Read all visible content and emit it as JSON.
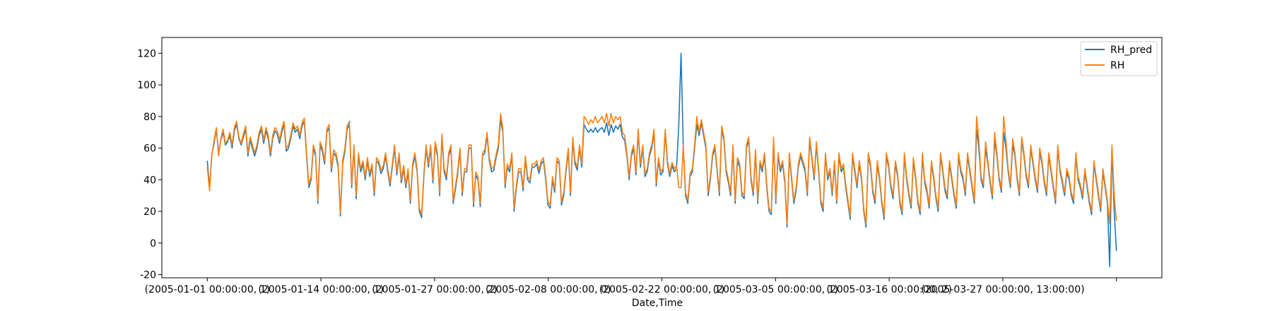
{
  "chart_data": {
    "type": "line",
    "title": "",
    "xlabel": "Date,Time",
    "ylabel": "",
    "ylim": [
      -22,
      130
    ],
    "xlim": [
      -20,
      420
    ],
    "yticks": [
      -20,
      0,
      20,
      40,
      60,
      80,
      100,
      120
    ],
    "xticks": [
      {
        "pos": 0,
        "label": "(2005-01-01 00:00:00, 1)"
      },
      {
        "pos": 50,
        "label": "(2005-01-14 00:00:00, 1)"
      },
      {
        "pos": 100,
        "label": "(2005-01-27 00:00:00, 2)"
      },
      {
        "pos": 150,
        "label": "(2005-02-08 00:00:00, 0)"
      },
      {
        "pos": 200,
        "label": "(2005-02-22 00:00:00, 1)"
      },
      {
        "pos": 250,
        "label": "(2005-03-05 00:00:00, 1)"
      },
      {
        "pos": 300,
        "label": "(2005-03-16 00:00:00, 2)"
      },
      {
        "pos": 350,
        "label": "(2005-03-27 00:00:00, 13:00:00)"
      },
      {
        "pos": 400,
        "label": ""
      }
    ],
    "legend_position": "upper right",
    "series": [
      {
        "name": "RH_pred",
        "color": "#1f77b4",
        "values": [
          52,
          35,
          56,
          63,
          72,
          57,
          65,
          70,
          62,
          64,
          68,
          60,
          71,
          75,
          66,
          62,
          67,
          72,
          55,
          65,
          60,
          55,
          60,
          68,
          72,
          63,
          71,
          66,
          55,
          66,
          71,
          69,
          63,
          70,
          75,
          58,
          60,
          66,
          74,
          70,
          72,
          66,
          74,
          77,
          55,
          35,
          40,
          60,
          55,
          25,
          62,
          58,
          50,
          70,
          73,
          45,
          57,
          55,
          48,
          17,
          50,
          58,
          72,
          75,
          35,
          60,
          28,
          55,
          45,
          50,
          40,
          52,
          42,
          48,
          30,
          52,
          50,
          44,
          47,
          55,
          45,
          36,
          48,
          60,
          43,
          55,
          38,
          47,
          35,
          45,
          25,
          48,
          55,
          45,
          20,
          16,
          42,
          60,
          48,
          60,
          38,
          62,
          55,
          30,
          67,
          45,
          40,
          55,
          60,
          25,
          34,
          44,
          58,
          30,
          45,
          45,
          60,
          60,
          23,
          43,
          40,
          23,
          55,
          57,
          68,
          52,
          45,
          46,
          54,
          60,
          78,
          70,
          35,
          48,
          45,
          55,
          20,
          35,
          45,
          45,
          33,
          53,
          40,
          38,
          48,
          48,
          50,
          44,
          50,
          52,
          40,
          24,
          22,
          40,
          32,
          52,
          50,
          24,
          30,
          45,
          58,
          30,
          65,
          50,
          46,
          60,
          48,
          75,
          72,
          70,
          72,
          70,
          73,
          70,
          72,
          73,
          70,
          76,
          68,
          75,
          70,
          74,
          72,
          75,
          67,
          65,
          55,
          40,
          55,
          60,
          43,
          70,
          48,
          60,
          42,
          45,
          55,
          60,
          70,
          36,
          52,
          43,
          45,
          70,
          50,
          42,
          49,
          45,
          47,
          75,
          120,
          60,
          30,
          25,
          42,
          45,
          60,
          75,
          68,
          76,
          68,
          60,
          30,
          40,
          55,
          60,
          45,
          30,
          72,
          65,
          45,
          38,
          30,
          60,
          25,
          52,
          48,
          30,
          28,
          60,
          65,
          40,
          30,
          57,
          25,
          50,
          45,
          55,
          35,
          20,
          18,
          65,
          25,
          55,
          45,
          50,
          38,
          10,
          55,
          40,
          25,
          33,
          48,
          55,
          50,
          45,
          30,
          65,
          53,
          40,
          62,
          45,
          25,
          20,
          55,
          40,
          45,
          30,
          50,
          25,
          55,
          45,
          48,
          35,
          25,
          15,
          55,
          45,
          35,
          50,
          40,
          20,
          10,
          55,
          48,
          32,
          25,
          50,
          40,
          25,
          15,
          55,
          48,
          35,
          28,
          50,
          42,
          25,
          18,
          55,
          40,
          30,
          22,
          52,
          40,
          25,
          18,
          55,
          38,
          32,
          22,
          50,
          40,
          28,
          20,
          55,
          45,
          33,
          28,
          50,
          40,
          30,
          22,
          55,
          45,
          40,
          30,
          55,
          45,
          35,
          25,
          72,
          60,
          40,
          35,
          60,
          50,
          38,
          28,
          65,
          55,
          40,
          32,
          70,
          60,
          45,
          35,
          62,
          55,
          40,
          30,
          65,
          55,
          42,
          35,
          60,
          50,
          40,
          32,
          58,
          50,
          38,
          30,
          55,
          45,
          35,
          25,
          60,
          45,
          38,
          30,
          45,
          40,
          30,
          25,
          55,
          40,
          35,
          28,
          45,
          35,
          25,
          18,
          50,
          40,
          30,
          20,
          45,
          35,
          25,
          -15,
          60,
          20,
          -5
        ]
      },
      {
        "name": "RH",
        "color": "#ff7f0e",
        "values": [
          48,
          33,
          55,
          65,
          73,
          55,
          66,
          72,
          63,
          65,
          70,
          62,
          73,
          77,
          67,
          63,
          69,
          74,
          57,
          67,
          62,
          57,
          62,
          70,
          74,
          65,
          73,
          68,
          57,
          68,
          73,
          71,
          65,
          72,
          77,
          60,
          62,
          68,
          76,
          72,
          74,
          68,
          76,
          79,
          57,
          37,
          42,
          62,
          57,
          27,
          64,
          60,
          52,
          72,
          75,
          47,
          59,
          57,
          50,
          19,
          52,
          60,
          74,
          77,
          37,
          62,
          30,
          57,
          47,
          52,
          42,
          54,
          44,
          50,
          32,
          54,
          52,
          46,
          49,
          57,
          47,
          38,
          50,
          62,
          45,
          57,
          40,
          49,
          37,
          47,
          27,
          50,
          57,
          47,
          22,
          18,
          44,
          62,
          50,
          62,
          40,
          64,
          57,
          32,
          69,
          47,
          42,
          57,
          62,
          27,
          36,
          46,
          60,
          32,
          47,
          47,
          62,
          62,
          25,
          45,
          42,
          25,
          57,
          59,
          70,
          54,
          47,
          48,
          56,
          62,
          82,
          72,
          37,
          50,
          47,
          57,
          22,
          37,
          47,
          47,
          35,
          55,
          42,
          40,
          50,
          50,
          52,
          46,
          52,
          54,
          42,
          26,
          24,
          42,
          34,
          54,
          52,
          26,
          32,
          47,
          60,
          32,
          67,
          52,
          48,
          62,
          50,
          80,
          78,
          75,
          78,
          76,
          80,
          76,
          78,
          80,
          76,
          82,
          74,
          82,
          76,
          80,
          78,
          80,
          70,
          68,
          57,
          42,
          57,
          62,
          45,
          72,
          50,
          62,
          44,
          47,
          57,
          62,
          72,
          38,
          54,
          45,
          47,
          72,
          52,
          44,
          51,
          47,
          49,
          35,
          35,
          62,
          32,
          27,
          44,
          47,
          62,
          80,
          70,
          78,
          70,
          62,
          32,
          42,
          57,
          62,
          47,
          32,
          74,
          67,
          47,
          40,
          32,
          62,
          27,
          54,
          50,
          32,
          30,
          62,
          67,
          42,
          32,
          59,
          27,
          52,
          47,
          57,
          37,
          22,
          20,
          67,
          27,
          57,
          47,
          52,
          40,
          12,
          57,
          42,
          27,
          35,
          50,
          57,
          52,
          47,
          32,
          67,
          55,
          42,
          64,
          47,
          27,
          22,
          57,
          42,
          47,
          32,
          52,
          27,
          57,
          47,
          50,
          37,
          27,
          17,
          57,
          47,
          37,
          52,
          42,
          22,
          12,
          57,
          50,
          34,
          27,
          52,
          42,
          27,
          17,
          57,
          50,
          37,
          30,
          52,
          44,
          27,
          20,
          57,
          42,
          32,
          24,
          54,
          42,
          27,
          20,
          57,
          40,
          34,
          24,
          52,
          42,
          30,
          22,
          57,
          47,
          35,
          30,
          52,
          42,
          32,
          24,
          57,
          47,
          42,
          32,
          57,
          47,
          37,
          27,
          80,
          65,
          42,
          37,
          64,
          52,
          40,
          30,
          70,
          57,
          42,
          34,
          80,
          65,
          47,
          37,
          66,
          57,
          42,
          32,
          67,
          57,
          44,
          37,
          62,
          52,
          42,
          34,
          60,
          52,
          40,
          32,
          57,
          47,
          37,
          27,
          62,
          47,
          40,
          32,
          47,
          42,
          32,
          27,
          57,
          42,
          37,
          30,
          47,
          37,
          27,
          20,
          52,
          42,
          32,
          22,
          47,
          37,
          27,
          12,
          62,
          30,
          14
        ]
      }
    ]
  }
}
